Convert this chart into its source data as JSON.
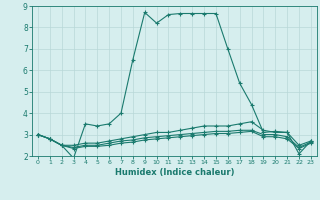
{
  "xlabel": "Humidex (Indice chaleur)",
  "background_color": "#d6eeee",
  "grid_color": "#b8d8d8",
  "line_color": "#1a7a6e",
  "xlim": [
    -0.5,
    23.5
  ],
  "ylim": [
    2,
    9
  ],
  "yticks": [
    2,
    3,
    4,
    5,
    6,
    7,
    8,
    9
  ],
  "xticks": [
    0,
    1,
    2,
    3,
    4,
    5,
    6,
    7,
    8,
    9,
    10,
    11,
    12,
    13,
    14,
    15,
    16,
    17,
    18,
    19,
    20,
    21,
    22,
    23
  ],
  "lines": [
    {
      "x": [
        0,
        1,
        2,
        3,
        4,
        5,
        6,
        7,
        8,
        9,
        10,
        11,
        12,
        13,
        14,
        15,
        16,
        17,
        18,
        19,
        20,
        21,
        22,
        23
      ],
      "y": [
        3.0,
        2.8,
        2.5,
        1.9,
        3.5,
        3.4,
        3.5,
        4.0,
        6.5,
        8.7,
        8.2,
        8.6,
        8.65,
        8.65,
        8.65,
        8.65,
        7.0,
        5.4,
        4.4,
        3.1,
        3.15,
        3.1,
        2.1,
        2.7
      ]
    },
    {
      "x": [
        0,
        1,
        2,
        3,
        4,
        5,
        6,
        7,
        8,
        9,
        10,
        11,
        12,
        13,
        14,
        15,
        16,
        17,
        18,
        19,
        20,
        21,
        22,
        23
      ],
      "y": [
        3.0,
        2.8,
        2.5,
        2.5,
        2.6,
        2.6,
        2.7,
        2.8,
        2.9,
        3.0,
        3.1,
        3.1,
        3.2,
        3.3,
        3.4,
        3.4,
        3.4,
        3.5,
        3.6,
        3.2,
        3.1,
        3.1,
        2.5,
        2.7
      ]
    },
    {
      "x": [
        0,
        1,
        2,
        3,
        4,
        5,
        6,
        7,
        8,
        9,
        10,
        11,
        12,
        13,
        14,
        15,
        16,
        17,
        18,
        19,
        20,
        21,
        22,
        23
      ],
      "y": [
        3.0,
        2.8,
        2.5,
        2.4,
        2.5,
        2.5,
        2.6,
        2.7,
        2.75,
        2.85,
        2.9,
        2.95,
        3.0,
        3.05,
        3.1,
        3.15,
        3.15,
        3.2,
        3.2,
        3.0,
        3.0,
        2.9,
        2.4,
        2.65
      ]
    },
    {
      "x": [
        0,
        1,
        2,
        3,
        4,
        5,
        6,
        7,
        8,
        9,
        10,
        11,
        12,
        13,
        14,
        15,
        16,
        17,
        18,
        19,
        20,
        21,
        22,
        23
      ],
      "y": [
        3.0,
        2.8,
        2.5,
        2.35,
        2.45,
        2.45,
        2.5,
        2.6,
        2.65,
        2.75,
        2.8,
        2.85,
        2.9,
        2.95,
        3.0,
        3.05,
        3.05,
        3.1,
        3.15,
        2.9,
        2.9,
        2.8,
        2.35,
        2.6
      ]
    }
  ]
}
